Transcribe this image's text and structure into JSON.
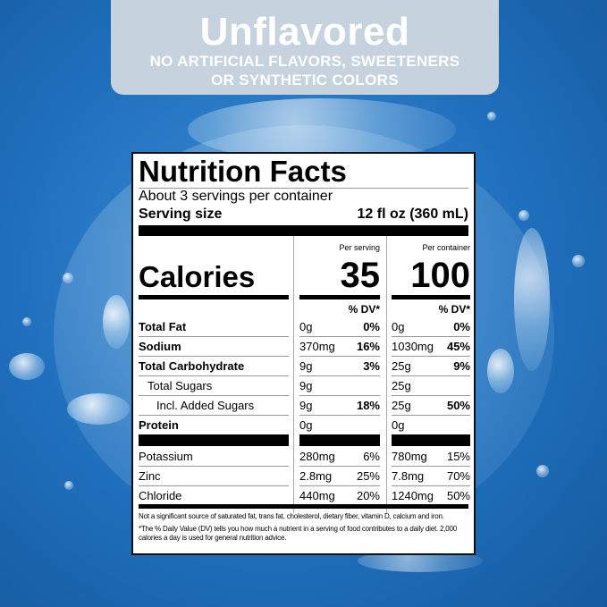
{
  "banner": {
    "title": "Unflavored",
    "subtitle_line1": "NO ARTIFICIAL FLAVORS, SWEETENERS",
    "subtitle_line2": "OR SYNTHETIC COLORS"
  },
  "colors": {
    "background": "#1f6fbd",
    "banner": "#c6d3df"
  },
  "label": {
    "title": "Nutrition Facts",
    "servings": "About 3 servings per container",
    "serving_size_label": "Serving size",
    "serving_size_value": "12 fl oz (360 mL)",
    "per_serving": "Per serving",
    "per_container": "Per container",
    "calories_label": "Calories",
    "calories_serving": "35",
    "calories_container": "100",
    "dv_header": "% DV*",
    "rows": [
      {
        "name": "Total Fat",
        "s_amt": "0g",
        "s_dv": "0%",
        "c_amt": "0g",
        "c_dv": "0%"
      },
      {
        "name": "Sodium",
        "s_amt": "370mg",
        "s_dv": "16%",
        "c_amt": "1030mg",
        "c_dv": "45%"
      },
      {
        "name": "Total Carbohydrate",
        "s_amt": "9g",
        "s_dv": "3%",
        "c_amt": "25g",
        "c_dv": "9%"
      },
      {
        "name": "Total Sugars",
        "s_amt": "9g",
        "s_dv": "",
        "c_amt": "25g",
        "c_dv": ""
      },
      {
        "name": "Incl. Added Sugars",
        "s_amt": "9g",
        "s_dv": "18%",
        "c_amt": "25g",
        "c_dv": "50%"
      },
      {
        "name": "Protein",
        "s_amt": "0g",
        "s_dv": "",
        "c_amt": "0g",
        "c_dv": ""
      },
      {
        "name": "Potassium",
        "s_amt": "280mg",
        "s_dv": "6%",
        "c_amt": "780mg",
        "c_dv": "15%"
      },
      {
        "name": "Zinc",
        "s_amt": "2.8mg",
        "s_dv": "25%",
        "c_amt": "7.8mg",
        "c_dv": "70%"
      },
      {
        "name": "Chloride",
        "s_amt": "440mg",
        "s_dv": "20%",
        "c_amt": "1240mg",
        "c_dv": "50%"
      }
    ],
    "footnote1": "Not a significant source of saturated fat, trans fat, cholesterol, dietary fiber, vitamin D, calcium and iron.",
    "footnote2": "*The % Daily Value (DV) tells you how much a nutrient in a serving of food contributes to a daily diet. 2,000 calories a day is used for general nutrition advice."
  }
}
